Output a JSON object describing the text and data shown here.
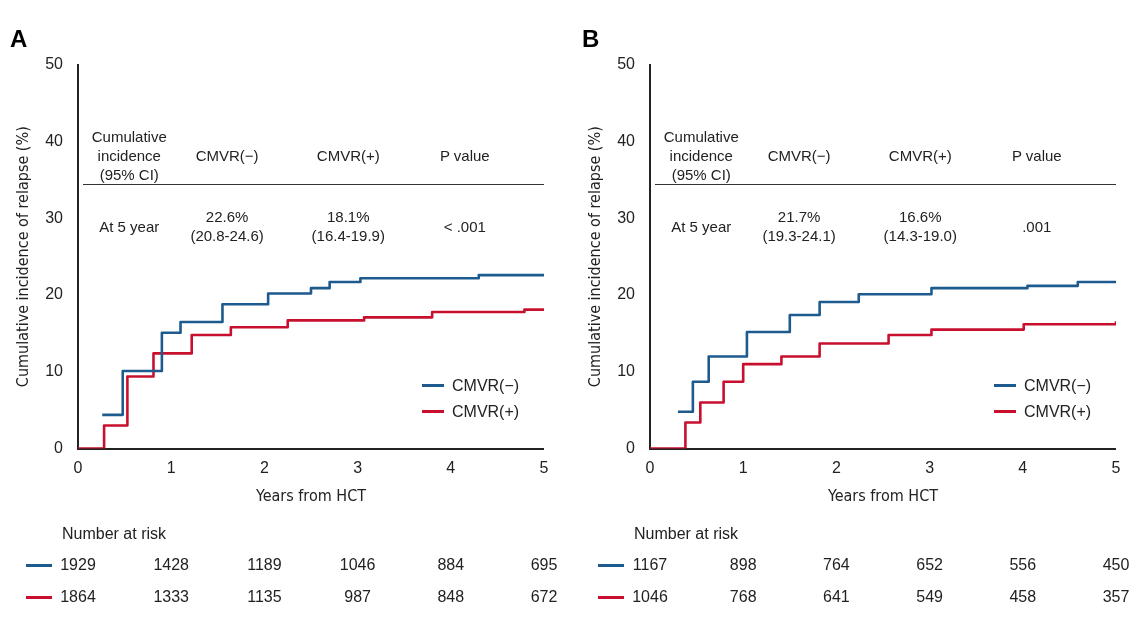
{
  "chart_data": [
    {
      "type": "step",
      "title": "A",
      "xlabel": "Years from HCT",
      "ylabel": "Cumulative incidence of relapse (%)",
      "xlim": [
        0,
        5
      ],
      "xticks": [
        0,
        1,
        2,
        3,
        4,
        5
      ],
      "ylim": [
        0,
        50
      ],
      "yticks": [
        0,
        10,
        20,
        30,
        40,
        50
      ],
      "grid": false,
      "legend": "bottom right",
      "marker": "none",
      "line_style": "solid",
      "series": [
        {
          "name": "CMVR(−)",
          "color": "#1d5a8e",
          "x": [
            0.26,
            0.48,
            0.9,
            1.1,
            1.55,
            2.04,
            2.5,
            2.7,
            3.03,
            3.8,
            4.3,
            5
          ],
          "values": [
            4.4,
            10.1,
            15.1,
            16.5,
            18.8,
            20.2,
            20.9,
            21.7,
            22.2,
            22.2,
            22.6,
            22.6
          ]
        },
        {
          "name": "CMVR(+)",
          "color": "#c8102e",
          "x": [
            0,
            0.18,
            0.28,
            0.53,
            0.81,
            1.22,
            1.64,
            2.25,
            3.07,
            3.8,
            4.79,
            5
          ],
          "values": [
            0,
            0,
            3.0,
            9.4,
            12.4,
            14.8,
            15.8,
            16.7,
            17.1,
            17.8,
            18.1,
            18.1
          ]
        }
      ],
      "annotations": [
        "Cumulative incidence (95% CI)",
        "CMVR(−)",
        "CMVR(+)",
        "P value",
        "At 5 year",
        "22.6% (20.8-24.6)",
        "18.1% (16.4-19.9)",
        "< .001",
        "Number at risk",
        "1929",
        "1428",
        "1189",
        "1046",
        "884",
        "695",
        "1864",
        "1333",
        "1135",
        "987",
        "848",
        "672"
      ]
    },
    {
      "type": "step",
      "title": "B",
      "xlabel": "Years from HCT",
      "ylabel": "Cumulative incidence of relapse (%)",
      "xlim": [
        0,
        5
      ],
      "xticks": [
        0,
        1,
        2,
        3,
        4,
        5
      ],
      "ylim": [
        0,
        50
      ],
      "yticks": [
        0,
        10,
        20,
        30,
        40,
        50
      ],
      "grid": false,
      "legend": "bottom right",
      "marker": "none",
      "line_style": "solid",
      "series": [
        {
          "name": "CMVR(−)",
          "color": "#1d5a8e",
          "x": [
            0.3,
            0.46,
            0.63,
            1.04,
            1.5,
            1.82,
            2.24,
            3.02,
            4.05,
            4.59,
            5
          ],
          "values": [
            4.8,
            8.7,
            12.0,
            15.2,
            17.4,
            19.1,
            20.1,
            20.9,
            21.2,
            21.7,
            21.7
          ]
        },
        {
          "name": "CMVR(+)",
          "color": "#c8102e",
          "x": [
            0,
            0.2,
            0.38,
            0.54,
            0.79,
            1.0,
            1.41,
            1.82,
            2.56,
            3.02,
            4.01,
            5
          ],
          "values": [
            0,
            0,
            3.4,
            6.0,
            8.7,
            11.0,
            12.0,
            13.7,
            14.8,
            15.5,
            16.2,
            16.6
          ]
        }
      ],
      "annotations": [
        "Cumulative incidence (95% CI)",
        "CMVR(−)",
        "CMVR(+)",
        "P value",
        "At 5 year",
        "21.7% (19.3-24.1)",
        "16.6% (14.3-19.0)",
        ".001",
        "Number at risk",
        "1167",
        "898",
        "764",
        "652",
        "556",
        "450",
        "1046",
        "768",
        "641",
        "549",
        "458",
        "357"
      ]
    }
  ]
}
